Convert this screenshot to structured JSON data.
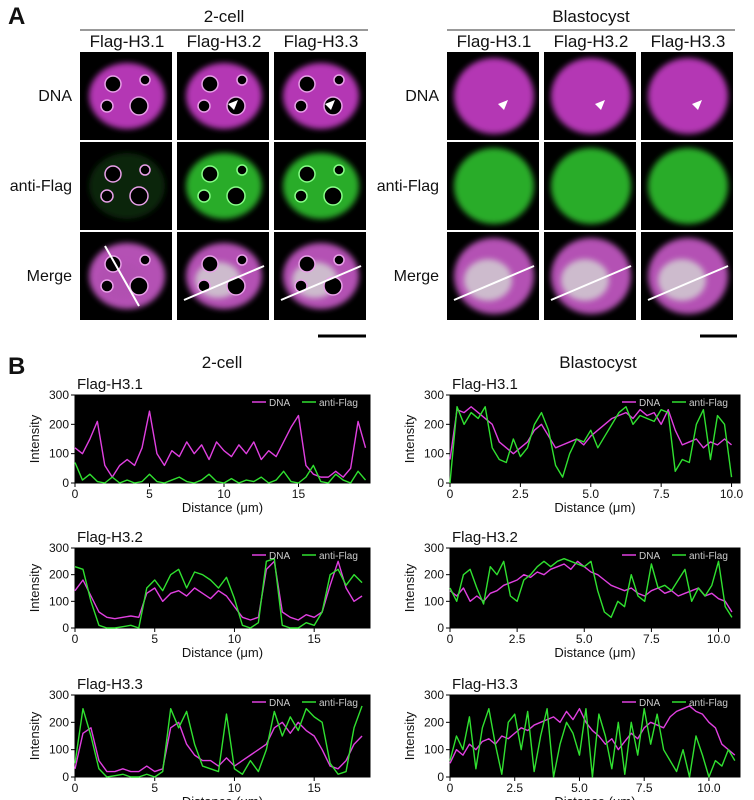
{
  "panel_a": {
    "label": "A",
    "groups": [
      {
        "title": "2-cell",
        "columns": [
          "Flag-H3.1",
          "Flag-H3.2",
          "Flag-H3.3"
        ],
        "rows": [
          "DNA",
          "anti-Flag",
          "Merge"
        ]
      },
      {
        "title": "Blastocyst",
        "columns": [
          "Flag-H3.1",
          "Flag-H3.2",
          "Flag-H3.3"
        ],
        "rows": [
          "DNA",
          "anti-Flag",
          "Merge"
        ]
      }
    ]
  },
  "panel_b": {
    "label": "B",
    "titles": [
      "2-cell",
      "Blastocyst"
    ]
  },
  "chart_data": [
    {
      "type": "line",
      "title": "Flag-H3.1",
      "xlabel": "Distance (μm)",
      "ylabel": "Intensity",
      "background": "#000000",
      "legend": "upper right",
      "x": [
        0,
        0.5,
        1,
        1.5,
        2,
        2.5,
        3,
        3.5,
        4,
        4.5,
        5,
        5.5,
        6,
        6.5,
        7,
        7.5,
        8,
        8.5,
        9,
        9.5,
        10,
        10.5,
        11,
        11.5,
        12,
        12.5,
        13,
        13.5,
        14,
        14.5,
        15,
        15.5,
        16,
        16.5,
        17,
        17.5,
        18,
        18.5,
        19,
        19.5
      ],
      "series": [
        {
          "name": "DNA",
          "color": "#e040e0",
          "values": [
            120,
            100,
            150,
            210,
            60,
            20,
            60,
            80,
            60,
            120,
            245,
            100,
            60,
            110,
            90,
            140,
            100,
            130,
            80,
            140,
            110,
            90,
            130,
            100,
            140,
            80,
            110,
            90,
            140,
            190,
            230,
            60,
            30,
            20,
            20,
            40,
            20,
            50,
            210,
            120
          ]
        },
        {
          "name": "anti-Flag",
          "color": "#30e030",
          "values": [
            70,
            10,
            30,
            5,
            0,
            20,
            0,
            10,
            0,
            5,
            30,
            5,
            0,
            10,
            20,
            5,
            0,
            10,
            30,
            5,
            0,
            15,
            0,
            10,
            5,
            20,
            0,
            10,
            40,
            5,
            0,
            20,
            60,
            5,
            0,
            30,
            10,
            0,
            40,
            10
          ]
        }
      ],
      "xlim": [
        0,
        19.8
      ],
      "xticks": [
        0,
        5,
        10,
        15
      ],
      "ylim": [
        0,
        300
      ],
      "yticks": [
        0,
        100,
        200,
        300
      ]
    },
    {
      "type": "line",
      "title": "Flag-H3.2",
      "xlabel": "Distance (μm)",
      "ylabel": "Intensity",
      "background": "#000000",
      "legend": "upper right",
      "x": [
        0,
        0.5,
        1,
        1.5,
        2,
        2.5,
        3,
        3.5,
        4,
        4.5,
        5,
        5.5,
        6,
        6.5,
        7,
        7.5,
        8,
        8.5,
        9,
        9.5,
        10,
        10.5,
        11,
        11.5,
        12,
        12.5,
        13,
        13.5,
        14,
        14.5,
        15,
        15.5,
        16,
        16.5,
        17,
        17.5,
        18
      ],
      "series": [
        {
          "name": "DNA",
          "color": "#e040e0",
          "values": [
            140,
            180,
            120,
            60,
            40,
            35,
            40,
            45,
            40,
            130,
            150,
            100,
            130,
            140,
            120,
            150,
            130,
            110,
            140,
            120,
            80,
            40,
            30,
            40,
            220,
            250,
            60,
            40,
            30,
            50,
            40,
            60,
            160,
            250,
            150,
            100,
            120
          ]
        },
        {
          "name": "anti-Flag",
          "color": "#30e030",
          "values": [
            230,
            220,
            100,
            10,
            0,
            0,
            5,
            10,
            0,
            150,
            180,
            140,
            200,
            220,
            150,
            210,
            200,
            180,
            150,
            190,
            110,
            10,
            0,
            20,
            250,
            260,
            10,
            0,
            0,
            20,
            10,
            60,
            200,
            220,
            160,
            200,
            170
          ]
        }
      ],
      "xlim": [
        0,
        18.5
      ],
      "xticks": [
        0,
        5,
        10,
        15
      ],
      "ylim": [
        0,
        300
      ],
      "yticks": [
        0,
        100,
        200,
        300
      ]
    },
    {
      "type": "line",
      "title": "Flag-H3.3",
      "xlabel": "Distance (μm)",
      "ylabel": "Intensity",
      "background": "#000000",
      "legend": "upper right",
      "x": [
        0,
        0.5,
        1,
        1.5,
        2,
        2.5,
        3,
        3.5,
        4,
        4.5,
        5,
        5.5,
        6,
        6.5,
        7,
        7.5,
        8,
        8.5,
        9,
        9.5,
        10,
        10.5,
        11,
        11.5,
        12,
        12.5,
        13,
        13.5,
        14,
        14.5,
        15,
        15.5,
        16,
        16.5,
        17,
        17.5,
        18
      ],
      "series": [
        {
          "name": "DNA",
          "color": "#e040e0",
          "values": [
            30,
            160,
            180,
            60,
            20,
            20,
            30,
            20,
            20,
            40,
            20,
            30,
            180,
            200,
            120,
            80,
            60,
            60,
            40,
            70,
            40,
            60,
            80,
            100,
            120,
            180,
            200,
            160,
            200,
            170,
            150,
            100,
            40,
            30,
            60,
            120,
            150
          ]
        },
        {
          "name": "anti-Flag",
          "color": "#30e030",
          "values": [
            50,
            250,
            150,
            30,
            0,
            5,
            10,
            0,
            0,
            10,
            0,
            20,
            250,
            180,
            240,
            120,
            40,
            30,
            20,
            230,
            30,
            10,
            60,
            20,
            100,
            240,
            150,
            220,
            170,
            250,
            220,
            200,
            50,
            10,
            20,
            180,
            260
          ]
        }
      ],
      "xlim": [
        0,
        18.5
      ],
      "xticks": [
        0,
        5,
        10,
        15
      ],
      "ylim": [
        0,
        300
      ],
      "yticks": [
        0,
        100,
        200,
        300
      ]
    },
    {
      "type": "line",
      "title": "Flag-H3.1",
      "xlabel": "Distance (μm)",
      "ylabel": "Intensity",
      "background": "#000000",
      "legend": "upper right",
      "x": [
        0,
        0.25,
        0.5,
        0.75,
        1,
        1.25,
        1.5,
        1.75,
        2,
        2.25,
        2.5,
        2.75,
        3,
        3.25,
        3.5,
        3.75,
        4,
        4.25,
        4.5,
        4.75,
        5,
        5.25,
        5.5,
        5.75,
        6,
        6.25,
        6.5,
        6.75,
        7,
        7.25,
        7.5,
        7.75,
        8,
        8.25,
        8.5,
        8.75,
        9,
        9.25,
        9.5,
        9.75,
        10
      ],
      "series": [
        {
          "name": "DNA",
          "color": "#e040e0",
          "values": [
            80,
            250,
            240,
            260,
            240,
            220,
            200,
            140,
            120,
            100,
            120,
            140,
            180,
            200,
            160,
            120,
            130,
            140,
            150,
            130,
            160,
            180,
            200,
            220,
            230,
            240,
            220,
            250,
            230,
            240,
            200,
            250,
            180,
            130,
            140,
            150,
            120,
            140,
            130,
            150,
            130
          ]
        },
        {
          "name": "anti-Flag",
          "color": "#30e030",
          "values": [
            0,
            260,
            200,
            240,
            220,
            260,
            120,
            80,
            70,
            150,
            90,
            120,
            200,
            240,
            180,
            60,
            20,
            100,
            150,
            140,
            180,
            120,
            160,
            200,
            240,
            260,
            200,
            230,
            220,
            210,
            250,
            240,
            40,
            80,
            70,
            200,
            250,
            80,
            230,
            200,
            20
          ]
        }
      ],
      "xlim": [
        0,
        10.3
      ],
      "xticks": [
        0,
        2.5,
        {
          "value": 5,
          "label": "5.0"
        },
        7.5,
        {
          "value": 10,
          "label": "10.0"
        }
      ],
      "ylim": [
        0,
        300
      ],
      "yticks": [
        0,
        100,
        200,
        300
      ]
    },
    {
      "type": "line",
      "title": "Flag-H3.2",
      "xlabel": "Distance (μm)",
      "ylabel": "Intensity",
      "background": "#000000",
      "legend": "upper right",
      "x": [
        0,
        0.25,
        0.5,
        0.75,
        1,
        1.25,
        1.5,
        1.75,
        2,
        2.25,
        2.5,
        2.75,
        3,
        3.25,
        3.5,
        3.75,
        4,
        4.25,
        4.5,
        4.75,
        5,
        5.25,
        5.5,
        5.75,
        6,
        6.25,
        6.5,
        6.75,
        7,
        7.25,
        7.5,
        7.75,
        8,
        8.25,
        8.5,
        8.75,
        9,
        9.25,
        9.5,
        9.75,
        10,
        10.25,
        10.5
      ],
      "series": [
        {
          "name": "DNA",
          "color": "#e040e0",
          "values": [
            140,
            120,
            150,
            100,
            120,
            100,
            130,
            140,
            160,
            170,
            180,
            200,
            190,
            210,
            200,
            220,
            230,
            240,
            220,
            250,
            230,
            210,
            200,
            180,
            160,
            150,
            140,
            150,
            130,
            120,
            140,
            150,
            130,
            140,
            120,
            130,
            140,
            150,
            120,
            130,
            110,
            100,
            60
          ]
        },
        {
          "name": "anti-Flag",
          "color": "#30e030",
          "values": [
            150,
            100,
            200,
            220,
            150,
            90,
            230,
            200,
            250,
            120,
            100,
            180,
            200,
            230,
            250,
            230,
            250,
            260,
            250,
            240,
            230,
            250,
            140,
            60,
            40,
            100,
            80,
            200,
            120,
            100,
            240,
            150,
            160,
            140,
            180,
            220,
            100,
            150,
            120,
            160,
            250,
            80,
            40
          ]
        }
      ],
      "xlim": [
        0,
        10.8
      ],
      "xticks": [
        0,
        2.5,
        {
          "value": 5,
          "label": "5.0"
        },
        7.5,
        {
          "value": 10,
          "label": "10.0"
        }
      ],
      "ylim": [
        0,
        300
      ],
      "yticks": [
        0,
        100,
        200,
        300
      ]
    },
    {
      "type": "line",
      "title": "Flag-H3.3",
      "xlabel": "Distance (μm)",
      "ylabel": "Intensity",
      "background": "#000000",
      "legend": "upper right",
      "x": [
        0,
        0.25,
        0.5,
        0.75,
        1,
        1.25,
        1.5,
        1.75,
        2,
        2.25,
        2.5,
        2.75,
        3,
        3.25,
        3.5,
        3.75,
        4,
        4.25,
        4.5,
        4.75,
        5,
        5.25,
        5.5,
        5.75,
        6,
        6.25,
        6.5,
        6.75,
        7,
        7.25,
        7.5,
        7.75,
        8,
        8.25,
        8.5,
        8.75,
        9,
        9.25,
        9.5,
        9.75,
        10,
        10.25,
        10.5,
        10.75,
        11
      ],
      "series": [
        {
          "name": "DNA",
          "color": "#e040e0",
          "values": [
            50,
            100,
            80,
            120,
            100,
            130,
            140,
            120,
            150,
            140,
            160,
            180,
            170,
            190,
            200,
            210,
            220,
            200,
            240,
            210,
            250,
            200,
            170,
            150,
            120,
            140,
            100,
            130,
            160,
            140,
            180,
            200,
            190,
            180,
            220,
            240,
            250,
            260,
            240,
            230,
            200,
            180,
            120,
            100,
            80
          ]
        },
        {
          "name": "anti-Flag",
          "color": "#30e030",
          "values": [
            60,
            150,
            100,
            220,
            30,
            180,
            250,
            120,
            10,
            200,
            230,
            100,
            240,
            20,
            150,
            250,
            0,
            120,
            200,
            160,
            80,
            250,
            0,
            230,
            150,
            30,
            200,
            10,
            200,
            80,
            250,
            120,
            230,
            100,
            60,
            20,
            100,
            0,
            150,
            80,
            0,
            60,
            40,
            100,
            60
          ]
        }
      ],
      "xlim": [
        0,
        11.2
      ],
      "xticks": [
        0,
        2.5,
        {
          "value": 5,
          "label": "5.0"
        },
        7.5,
        {
          "value": 10,
          "label": "10.0"
        }
      ],
      "ylim": [
        0,
        300
      ],
      "yticks": [
        0,
        100,
        200,
        300
      ]
    }
  ]
}
